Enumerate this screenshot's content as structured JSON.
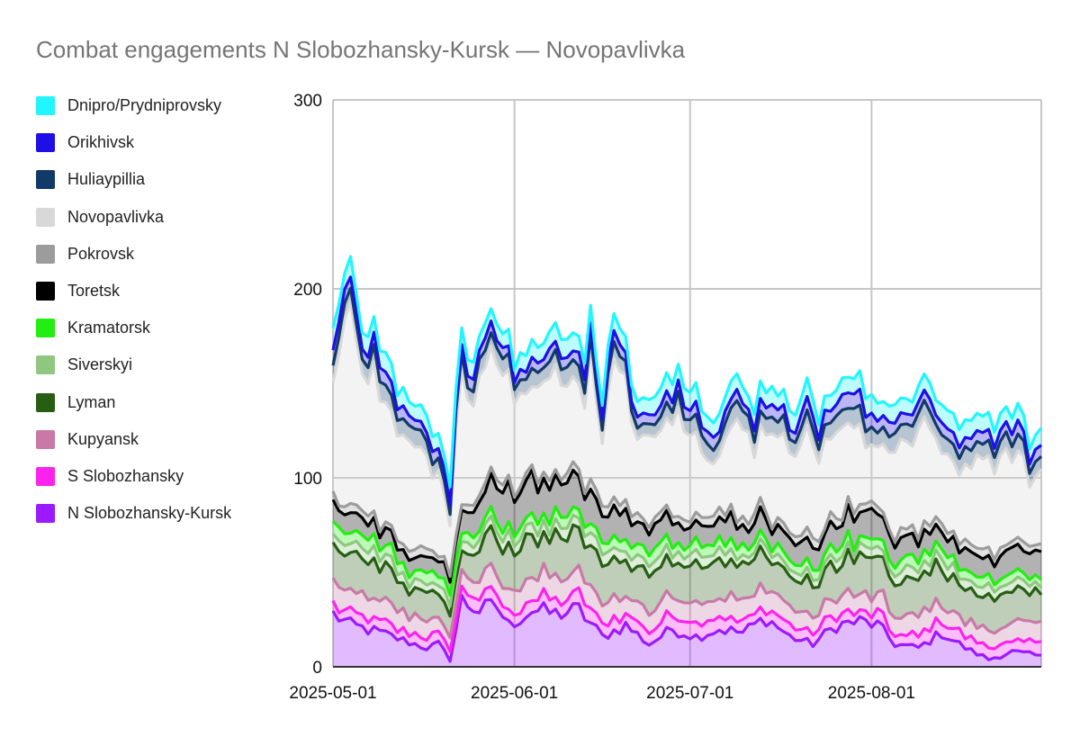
{
  "chart_data": {
    "type": "area",
    "stacked": true,
    "title": "Combat engagements N Slobozhansky-Kursk — Novopavlivka",
    "x_start": "2025-05-01",
    "x_end": "2025-08-30",
    "x_ticks": [
      "2025-05-01",
      "2025-06-01",
      "2025-07-01",
      "2025-08-01"
    ],
    "ylim": [
      0,
      300
    ],
    "y_ticks": [
      0,
      100,
      200,
      300
    ],
    "grid": true,
    "legend_position": "left",
    "series": [
      {
        "name": "N Slobozhansky-Kursk",
        "color": "#9b1aff",
        "keys": [
          [
            0,
            28
          ],
          [
            3,
            22
          ],
          [
            8,
            18
          ],
          [
            12,
            14
          ],
          [
            16,
            10
          ],
          [
            18,
            12
          ],
          [
            20,
            4
          ],
          [
            22,
            35
          ],
          [
            25,
            30
          ],
          [
            28,
            32
          ],
          [
            30,
            22
          ],
          [
            34,
            30
          ],
          [
            38,
            28
          ],
          [
            42,
            30
          ],
          [
            46,
            16
          ],
          [
            50,
            22
          ],
          [
            54,
            12
          ],
          [
            58,
            20
          ],
          [
            62,
            16
          ],
          [
            66,
            20
          ],
          [
            70,
            18
          ],
          [
            74,
            26
          ],
          [
            78,
            16
          ],
          [
            82,
            12
          ],
          [
            86,
            22
          ],
          [
            90,
            24
          ],
          [
            93,
            22
          ],
          [
            96,
            12
          ],
          [
            100,
            10
          ],
          [
            104,
            18
          ],
          [
            108,
            10
          ],
          [
            112,
            4
          ],
          [
            116,
            8
          ],
          [
            120,
            6
          ],
          [
            122,
            4
          ]
        ]
      },
      {
        "name": "S Slobozhansky",
        "color": "#ff22ee",
        "keys": [
          [
            0,
            6
          ],
          [
            10,
            5
          ],
          [
            20,
            6
          ],
          [
            30,
            6
          ],
          [
            40,
            8
          ],
          [
            50,
            6
          ],
          [
            60,
            8
          ],
          [
            70,
            6
          ],
          [
            80,
            6
          ],
          [
            90,
            5
          ],
          [
            100,
            6
          ],
          [
            110,
            6
          ],
          [
            122,
            6
          ]
        ]
      },
      {
        "name": "Kupyansk",
        "color": "#c879a8",
        "keys": [
          [
            0,
            12
          ],
          [
            10,
            10
          ],
          [
            20,
            8
          ],
          [
            30,
            12
          ],
          [
            40,
            12
          ],
          [
            50,
            10
          ],
          [
            60,
            10
          ],
          [
            70,
            12
          ],
          [
            80,
            8
          ],
          [
            90,
            10
          ],
          [
            100,
            10
          ],
          [
            110,
            8
          ],
          [
            122,
            12
          ]
        ]
      },
      {
        "name": "Lyman",
        "color": "#285e14",
        "keys": [
          [
            0,
            22
          ],
          [
            8,
            18
          ],
          [
            16,
            14
          ],
          [
            22,
            12
          ],
          [
            28,
            22
          ],
          [
            36,
            20
          ],
          [
            44,
            22
          ],
          [
            52,
            18
          ],
          [
            60,
            20
          ],
          [
            68,
            18
          ],
          [
            76,
            16
          ],
          [
            84,
            18
          ],
          [
            92,
            20
          ],
          [
            100,
            18
          ],
          [
            108,
            18
          ],
          [
            116,
            16
          ],
          [
            122,
            16
          ]
        ]
      },
      {
        "name": "Siverskyi",
        "color": "#8fc781",
        "keys": [
          [
            0,
            6
          ],
          [
            20,
            5
          ],
          [
            40,
            6
          ],
          [
            60,
            5
          ],
          [
            80,
            4
          ],
          [
            100,
            5
          ],
          [
            122,
            4
          ]
        ]
      },
      {
        "name": "Kramatorsk",
        "color": "#22ee11",
        "keys": [
          [
            0,
            6
          ],
          [
            20,
            5
          ],
          [
            40,
            5
          ],
          [
            60,
            6
          ],
          [
            80,
            4
          ],
          [
            100,
            6
          ],
          [
            122,
            4
          ]
        ]
      },
      {
        "name": "Toretsk",
        "color": "#000000",
        "keys": [
          [
            0,
            10
          ],
          [
            10,
            8
          ],
          [
            20,
            8
          ],
          [
            25,
            15
          ],
          [
            32,
            22
          ],
          [
            38,
            16
          ],
          [
            44,
            18
          ],
          [
            52,
            14
          ],
          [
            60,
            10
          ],
          [
            68,
            12
          ],
          [
            76,
            10
          ],
          [
            84,
            12
          ],
          [
            92,
            14
          ],
          [
            100,
            10
          ],
          [
            110,
            10
          ],
          [
            122,
            14
          ]
        ]
      },
      {
        "name": "Pokrovsk",
        "color": "#9c9c9c",
        "keys": [
          [
            0,
            4
          ],
          [
            20,
            4
          ],
          [
            40,
            4
          ],
          [
            60,
            4
          ],
          [
            80,
            4
          ],
          [
            100,
            4
          ],
          [
            122,
            4
          ]
        ]
      },
      {
        "name": "Novopavlivka",
        "color": "#d8d8d8",
        "keys": [
          [
            0,
            70
          ],
          [
            3,
            95
          ],
          [
            5,
            80
          ],
          [
            8,
            65
          ],
          [
            12,
            55
          ],
          [
            16,
            50
          ],
          [
            20,
            30
          ],
          [
            22,
            70
          ],
          [
            24,
            55
          ],
          [
            28,
            65
          ],
          [
            30,
            50
          ],
          [
            34,
            40
          ],
          [
            38,
            65
          ],
          [
            40,
            40
          ],
          [
            44,
            60
          ],
          [
            46,
            40
          ],
          [
            48,
            70
          ],
          [
            52,
            45
          ],
          [
            56,
            40
          ],
          [
            58,
            55
          ],
          [
            62,
            40
          ],
          [
            66,
            30
          ],
          [
            70,
            55
          ],
          [
            72,
            30
          ],
          [
            74,
            50
          ],
          [
            78,
            50
          ],
          [
            82,
            45
          ],
          [
            86,
            45
          ],
          [
            90,
            40
          ],
          [
            92,
            30
          ],
          [
            96,
            50
          ],
          [
            98,
            40
          ],
          [
            100,
            50
          ],
          [
            104,
            40
          ],
          [
            108,
            35
          ],
          [
            110,
            45
          ],
          [
            112,
            55
          ],
          [
            116,
            45
          ],
          [
            118,
            40
          ],
          [
            120,
            35
          ],
          [
            122,
            45
          ]
        ]
      },
      {
        "name": "Huliaypillia",
        "color": "#113a69",
        "keys": [
          [
            0,
            8
          ],
          [
            10,
            9
          ],
          [
            20,
            7
          ],
          [
            30,
            8
          ],
          [
            40,
            9
          ],
          [
            50,
            7
          ],
          [
            60,
            8
          ],
          [
            70,
            9
          ],
          [
            80,
            8
          ],
          [
            90,
            9
          ],
          [
            100,
            9
          ],
          [
            110,
            8
          ],
          [
            122,
            8
          ]
        ]
      },
      {
        "name": "Orikhivsk",
        "color": "#1d0fe6",
        "keys": [
          [
            0,
            7
          ],
          [
            10,
            6
          ],
          [
            20,
            6
          ],
          [
            30,
            5
          ],
          [
            40,
            6
          ],
          [
            50,
            6
          ],
          [
            60,
            6
          ],
          [
            70,
            5
          ],
          [
            80,
            6
          ],
          [
            90,
            7
          ],
          [
            100,
            6
          ],
          [
            110,
            6
          ],
          [
            122,
            6
          ]
        ]
      },
      {
        "name": "Dnipro/Prydniprovsky",
        "color": "#21f6ff",
        "keys": [
          [
            0,
            10
          ],
          [
            10,
            9
          ],
          [
            20,
            8
          ],
          [
            30,
            8
          ],
          [
            40,
            9
          ],
          [
            50,
            8
          ],
          [
            60,
            9
          ],
          [
            70,
            8
          ],
          [
            80,
            9
          ],
          [
            90,
            9
          ],
          [
            100,
            8
          ],
          [
            110,
            9
          ],
          [
            122,
            8
          ]
        ]
      }
    ]
  }
}
